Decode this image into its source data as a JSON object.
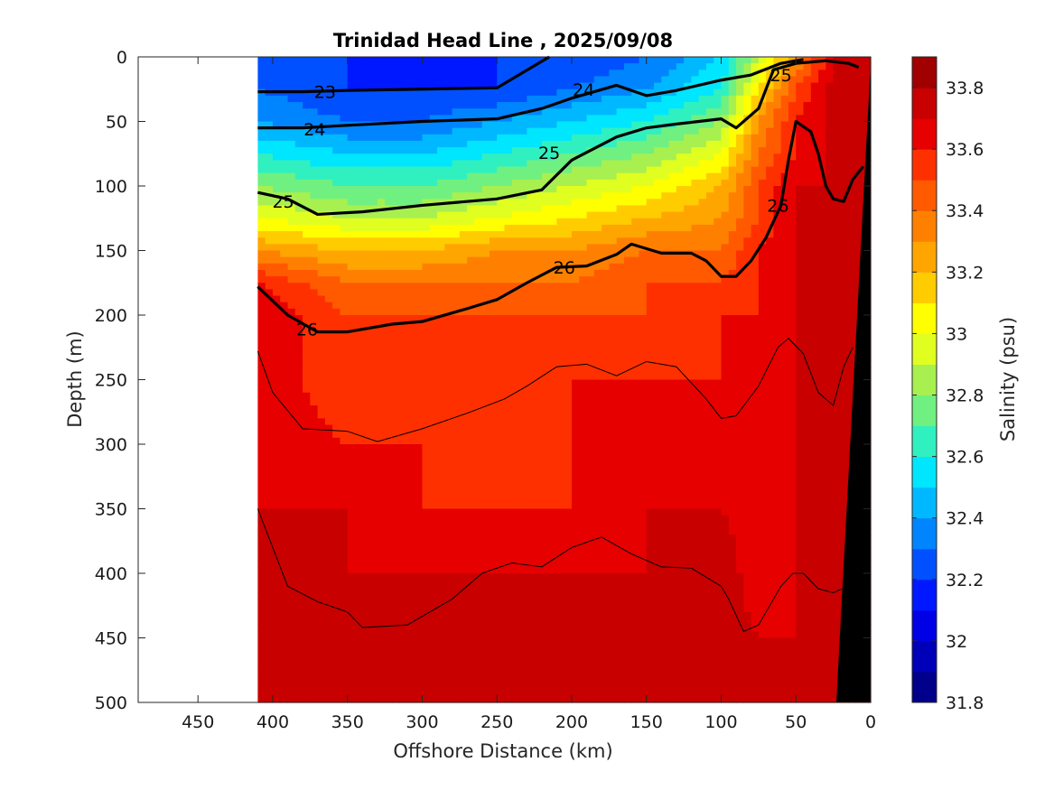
{
  "chart_data": {
    "type": "heatmap",
    "title": "Trinidad Head Line , 2025/09/08",
    "xlabel": "Offshore Distance (km)",
    "ylabel": "Depth (m)",
    "colorbar_label": "Salinity (psu)",
    "x_reversed": true,
    "y_reversed": true,
    "xlim": [
      490,
      0
    ],
    "ylim": [
      500,
      0
    ],
    "xticks": [
      "450",
      "400",
      "350",
      "300",
      "250",
      "200",
      "150",
      "100",
      "50",
      "0"
    ],
    "yticks": [
      "0",
      "50",
      "100",
      "150",
      "200",
      "250",
      "300",
      "350",
      "400",
      "450",
      "500"
    ],
    "colorbar_ticks": [
      "33.8",
      "33.6",
      "33.4",
      "33.2",
      "33",
      "32.8",
      "32.6",
      "32.4",
      "32.2",
      "32",
      "31.8"
    ],
    "colorbar_range": [
      31.8,
      33.9
    ],
    "colorbar_colors": [
      "#00008b",
      "#0000b8",
      "#0000e6",
      "#0018ff",
      "#0050ff",
      "#0085ff",
      "#00b8ff",
      "#00e6ff",
      "#30f0c0",
      "#70f080",
      "#a8f050",
      "#e0ff20",
      "#ffff00",
      "#ffcc00",
      "#ffa500",
      "#ff8000",
      "#ff5a00",
      "#ff3000",
      "#e60000",
      "#c80000",
      "#a00000"
    ],
    "grid": false,
    "legend": "colorbar-right",
    "data_extent_km": [
      410,
      0
    ],
    "salinity_profiles": {
      "x_km": [
        410,
        350,
        300,
        250,
        200,
        150,
        100,
        75,
        50,
        30,
        15
      ],
      "depth_m": [
        0,
        25,
        50,
        75,
        100,
        125,
        150,
        175,
        200,
        250,
        300,
        350,
        400,
        450,
        500
      ],
      "values": [
        [
          32.2,
          32.2,
          32.1,
          32.2,
          32.2,
          32.3,
          32.5,
          32.9,
          33.3,
          33.6,
          33.8
        ],
        [
          32.3,
          32.2,
          32.2,
          32.2,
          32.3,
          32.4,
          32.6,
          33.1,
          33.5,
          33.7,
          33.8
        ],
        [
          32.4,
          32.3,
          32.3,
          32.4,
          32.5,
          32.6,
          32.8,
          33.3,
          33.6,
          33.7,
          33.8
        ],
        [
          32.6,
          32.5,
          32.5,
          32.6,
          32.7,
          32.8,
          33.0,
          33.4,
          33.6,
          33.7,
          33.8
        ],
        [
          32.8,
          32.7,
          32.7,
          32.8,
          32.9,
          33.0,
          33.2,
          33.5,
          33.7,
          33.7,
          33.8
        ],
        [
          33.0,
          32.9,
          32.9,
          33.0,
          33.1,
          33.2,
          33.3,
          33.5,
          33.7,
          33.7,
          33.8
        ],
        [
          33.3,
          33.2,
          33.2,
          33.3,
          33.3,
          33.4,
          33.4,
          33.6,
          33.7,
          33.7,
          33.8
        ],
        [
          33.6,
          33.4,
          33.4,
          33.4,
          33.4,
          33.5,
          33.5,
          33.6,
          33.7,
          33.7,
          33.8
        ],
        [
          33.7,
          33.5,
          33.5,
          33.5,
          33.5,
          33.5,
          33.6,
          33.6,
          33.7,
          33.7,
          33.8
        ],
        [
          33.7,
          33.5,
          33.5,
          33.5,
          33.6,
          33.6,
          33.6,
          33.6,
          33.7,
          33.7,
          33.8
        ],
        [
          33.7,
          33.6,
          33.6,
          33.5,
          33.6,
          33.6,
          33.7,
          33.6,
          33.7,
          33.7,
          33.8
        ],
        [
          33.7,
          33.7,
          33.6,
          33.6,
          33.6,
          33.7,
          33.7,
          33.6,
          33.7,
          33.7,
          33.8
        ],
        [
          33.7,
          33.7,
          33.7,
          33.7,
          33.7,
          33.7,
          33.8,
          33.6,
          33.7,
          33.8,
          33.8
        ],
        [
          33.7,
          33.7,
          33.7,
          33.7,
          33.7,
          33.8,
          33.8,
          33.7,
          33.7,
          33.8,
          33.8
        ],
        [
          33.8,
          33.7,
          33.7,
          33.7,
          33.8,
          33.8,
          33.8,
          33.7,
          33.8,
          33.8,
          33.8
        ]
      ]
    },
    "density_contours": [
      {
        "label": "23",
        "points": [
          [
            410,
            27
          ],
          [
            380,
            27
          ],
          [
            350,
            26
          ],
          [
            300,
            25
          ],
          [
            250,
            24
          ],
          [
            215,
            0
          ]
        ]
      },
      {
        "label": "24",
        "points": [
          [
            410,
            55
          ],
          [
            380,
            55
          ],
          [
            350,
            53
          ],
          [
            300,
            50
          ],
          [
            250,
            48
          ],
          [
            220,
            40
          ],
          [
            200,
            32
          ],
          [
            170,
            22
          ],
          [
            150,
            30
          ],
          [
            130,
            26
          ],
          [
            100,
            18
          ],
          [
            80,
            14
          ],
          [
            60,
            5
          ],
          [
            45,
            2
          ]
        ]
      },
      {
        "label": "25",
        "points": [
          [
            410,
            105
          ],
          [
            390,
            110
          ],
          [
            370,
            122
          ],
          [
            340,
            120
          ],
          [
            300,
            115
          ],
          [
            250,
            110
          ],
          [
            220,
            103
          ],
          [
            200,
            80
          ],
          [
            170,
            62
          ],
          [
            150,
            55
          ],
          [
            130,
            52
          ],
          [
            100,
            48
          ],
          [
            90,
            55
          ],
          [
            75,
            40
          ],
          [
            65,
            10
          ],
          [
            50,
            5
          ],
          [
            30,
            3
          ],
          [
            15,
            5
          ],
          [
            8,
            8
          ]
        ]
      },
      {
        "label": "26",
        "points": [
          [
            410,
            178
          ],
          [
            390,
            200
          ],
          [
            370,
            213
          ],
          [
            350,
            213
          ],
          [
            320,
            207
          ],
          [
            300,
            205
          ],
          [
            270,
            195
          ],
          [
            250,
            188
          ],
          [
            230,
            175
          ],
          [
            210,
            163
          ],
          [
            190,
            162
          ],
          [
            170,
            153
          ],
          [
            160,
            145
          ],
          [
            140,
            152
          ],
          [
            120,
            152
          ],
          [
            110,
            158
          ],
          [
            100,
            170
          ],
          [
            90,
            170
          ],
          [
            80,
            158
          ],
          [
            70,
            140
          ],
          [
            60,
            115
          ],
          [
            55,
            80
          ],
          [
            50,
            50
          ],
          [
            40,
            58
          ],
          [
            35,
            75
          ],
          [
            30,
            100
          ],
          [
            25,
            110
          ],
          [
            18,
            112
          ],
          [
            12,
            95
          ],
          [
            5,
            85
          ]
        ]
      }
    ],
    "contour_label_positions": [
      {
        "label": "23",
        "x": 365,
        "y": 27
      },
      {
        "label": "24",
        "x": 372,
        "y": 56
      },
      {
        "label": "24",
        "x": 192,
        "y": 25
      },
      {
        "label": "25",
        "x": 393,
        "y": 112
      },
      {
        "label": "25",
        "x": 215,
        "y": 74
      },
      {
        "label": "25",
        "x": 60,
        "y": 14
      },
      {
        "label": "26",
        "x": 377,
        "y": 211
      },
      {
        "label": "26",
        "x": 205,
        "y": 163
      },
      {
        "label": "26",
        "x": 62,
        "y": 115
      }
    ],
    "thin_contours": [
      [
        [
          410,
          228
        ],
        [
          400,
          260
        ],
        [
          380,
          288
        ],
        [
          350,
          290
        ],
        [
          330,
          298
        ],
        [
          300,
          288
        ],
        [
          270,
          276
        ],
        [
          245,
          265
        ],
        [
          230,
          255
        ],
        [
          210,
          240
        ],
        [
          190,
          238
        ],
        [
          170,
          247
        ],
        [
          150,
          236
        ],
        [
          130,
          240
        ],
        [
          110,
          265
        ],
        [
          100,
          280
        ],
        [
          90,
          278
        ],
        [
          75,
          255
        ],
        [
          62,
          225
        ],
        [
          55,
          218
        ],
        [
          45,
          230
        ],
        [
          35,
          260
        ],
        [
          25,
          270
        ],
        [
          18,
          240
        ],
        [
          12,
          225
        ]
      ],
      [
        [
          410,
          350
        ],
        [
          400,
          380
        ],
        [
          390,
          410
        ],
        [
          370,
          422
        ],
        [
          350,
          430
        ],
        [
          340,
          442
        ],
        [
          310,
          440
        ],
        [
          280,
          420
        ],
        [
          260,
          400
        ],
        [
          240,
          392
        ],
        [
          220,
          395
        ],
        [
          200,
          380
        ],
        [
          180,
          372
        ],
        [
          160,
          385
        ],
        [
          140,
          395
        ],
        [
          120,
          396
        ],
        [
          100,
          410
        ],
        [
          95,
          420
        ],
        [
          85,
          445
        ],
        [
          75,
          440
        ],
        [
          60,
          410
        ],
        [
          52,
          400
        ],
        [
          45,
          400
        ],
        [
          35,
          412
        ],
        [
          25,
          415
        ],
        [
          15,
          410
        ]
      ]
    ],
    "land_polygon": [
      [
        12,
        500
      ],
      [
        23,
        500
      ],
      [
        0,
        5
      ],
      [
        0,
        500
      ]
    ]
  }
}
